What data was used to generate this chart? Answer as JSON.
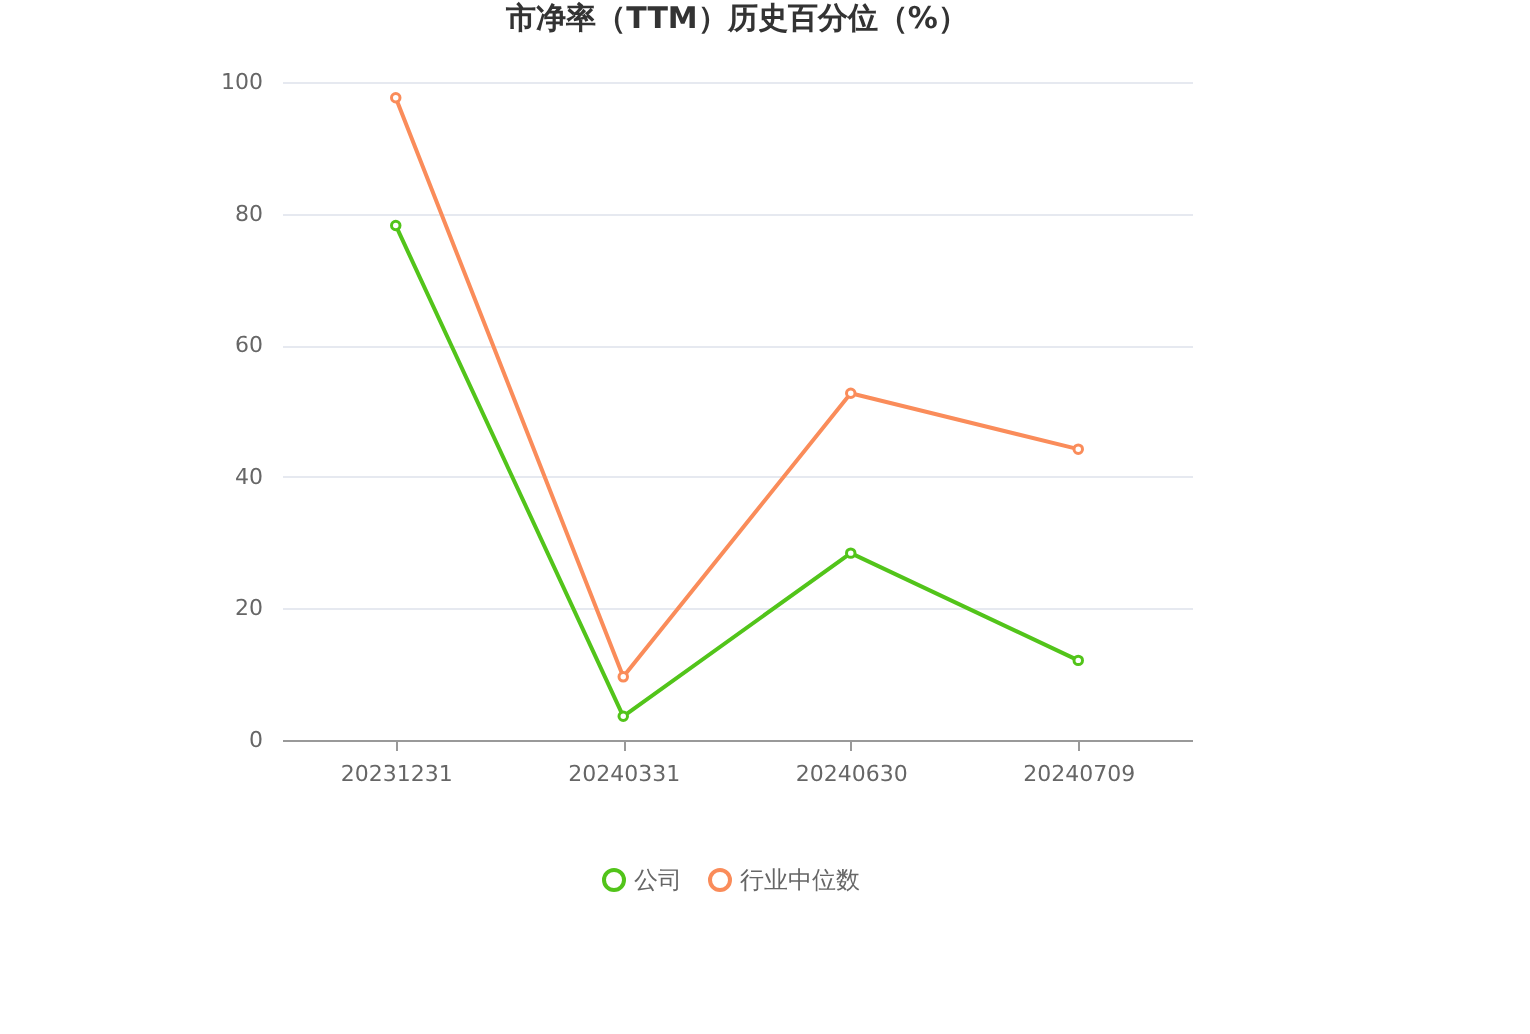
{
  "chart_data": {
    "type": "line",
    "title": "市净率（TTM）历史百分位（%）",
    "categories": [
      "20231231",
      "20240331",
      "20240630",
      "20240709"
    ],
    "series": [
      {
        "name": "公司",
        "color": "#52c41a",
        "values": [
          78.2,
          3.6,
          28.4,
          12.1
        ]
      },
      {
        "name": "行业中位数",
        "color": "#fa8c5a",
        "values": [
          97.6,
          9.6,
          52.7,
          44.2
        ]
      }
    ],
    "ylim": [
      0,
      100
    ],
    "yticks": [
      0,
      20,
      40,
      60,
      80,
      100
    ],
    "grid": "y",
    "legend": "bottom",
    "marker": "circle",
    "line_style": "solid"
  }
}
